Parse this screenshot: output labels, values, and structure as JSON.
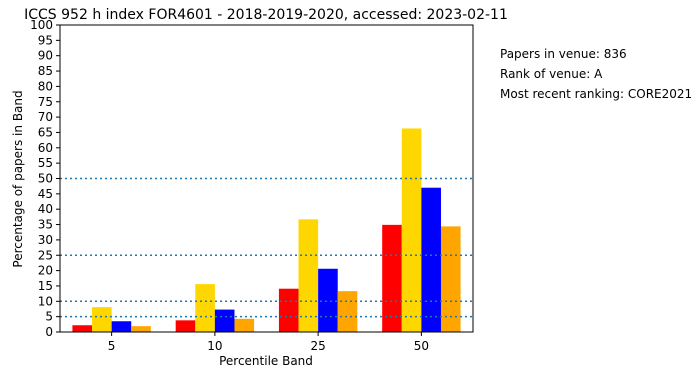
{
  "info": {
    "papers": "Papers in venue: 836",
    "rank": "Rank of venue: A",
    "recent": "Most recent ranking: CORE2021"
  },
  "chart_data": {
    "type": "bar",
    "title": "ICCS 952 h index FOR4601 - 2018-2019-2020, accessed: 2023-02-11",
    "xlabel": "Percentile Band",
    "ylabel": "Percentage of papers in Band",
    "categories": [
      "5",
      "10",
      "25",
      "50"
    ],
    "ylim": [
      0,
      100
    ],
    "yticks": [
      0,
      5,
      10,
      15,
      20,
      25,
      30,
      35,
      40,
      45,
      50,
      55,
      60,
      65,
      70,
      75,
      80,
      85,
      90,
      95,
      100
    ],
    "series": [
      {
        "color": "#ff0000",
        "values": [
          2.2,
          3.8,
          14.1,
          34.9
        ]
      },
      {
        "color": "#ffd700",
        "values": [
          8.1,
          15.6,
          36.7,
          66.3
        ]
      },
      {
        "color": "#0000ff",
        "values": [
          3.5,
          7.3,
          20.6,
          47.0
        ]
      },
      {
        "color": "#ffa500",
        "values": [
          1.9,
          4.3,
          13.3,
          34.4
        ]
      }
    ],
    "reference_lines": [
      5,
      10,
      25,
      50
    ],
    "reference_line_color": "#1f77b4"
  }
}
